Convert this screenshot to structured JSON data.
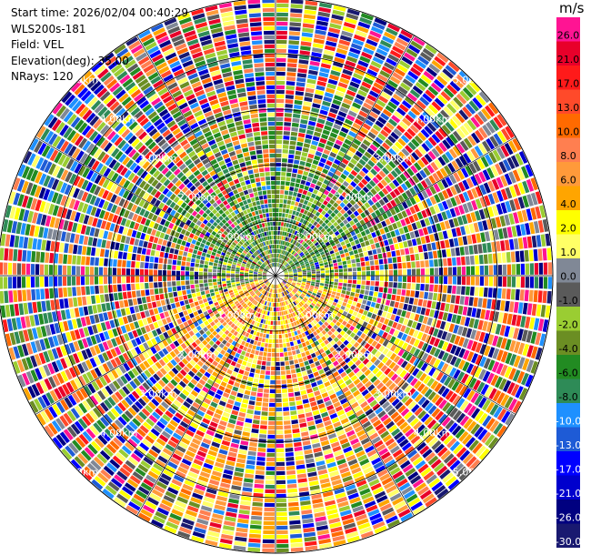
{
  "header": {
    "start_time": "Start time: 2026/02/04 00:40:29",
    "instrument": "WLS200s-181",
    "field": "Field: VEL",
    "elevation": "Elevation(deg): 35.00",
    "nrays": "NRays: 120"
  },
  "colorbar": {
    "unit": "m/s",
    "levels": [
      {
        "label": "26.0",
        "color": "#ff1493"
      },
      {
        "label": "21.0",
        "color": "#e8002a"
      },
      {
        "label": "17.0",
        "color": "#ff1a1a"
      },
      {
        "label": "13.0",
        "color": "#ff4a2a"
      },
      {
        "label": "10.0",
        "color": "#ff6a00"
      },
      {
        "label": "8.0",
        "color": "#ff7f50"
      },
      {
        "label": "6.0",
        "color": "#ff9a3a"
      },
      {
        "label": "4.0",
        "color": "#ffa500"
      },
      {
        "label": "2.0",
        "color": "#ffff00"
      },
      {
        "label": "1.0",
        "color": "#ffff66"
      },
      {
        "label": "0.0",
        "color": "#808896"
      },
      {
        "label": "-1.0",
        "color": "#5a5a5a"
      },
      {
        "label": "-2.0",
        "color": "#9acd32"
      },
      {
        "label": "-4.0",
        "color": "#6b8e23"
      },
      {
        "label": "-6.0",
        "color": "#228b22"
      },
      {
        "label": "-8.0",
        "color": "#2e8b57"
      },
      {
        "label": "-10.0",
        "color": "#1e90ff"
      },
      {
        "label": "-13.0",
        "color": "#1e5bd6"
      },
      {
        "label": "-17.0",
        "color": "#0000ff"
      },
      {
        "label": "-21.0",
        "color": "#0000cd"
      },
      {
        "label": "-26.0",
        "color": "#000080"
      },
      {
        "label": "-30.0",
        "color": "#191970"
      }
    ]
  },
  "chart_data": {
    "type": "heatmap",
    "projection": "polar PPI",
    "field": "VEL",
    "units": "m/s",
    "elevation_deg": 35.0,
    "nrays": 120,
    "range_rings_km": [
      1.0,
      2.0,
      3.0,
      4.0,
      5.0
    ],
    "range_ring_labels": [
      "1.00km",
      "2.00km",
      "3.00km",
      "4.00km",
      "5.00km"
    ],
    "spokes_deg": [
      0,
      30,
      60,
      90,
      120,
      150,
      180,
      210,
      240,
      270,
      300,
      330
    ],
    "pattern_summary": "Near range (<1 km) mostly green (-6 to -2 m/s) to the north and yellow/orange (+2 to +6 m/s) to the south; beyond ~1.5 km values are highly noisy across the full color scale.",
    "colorbar_range": [
      -30.0,
      26.0
    ]
  }
}
